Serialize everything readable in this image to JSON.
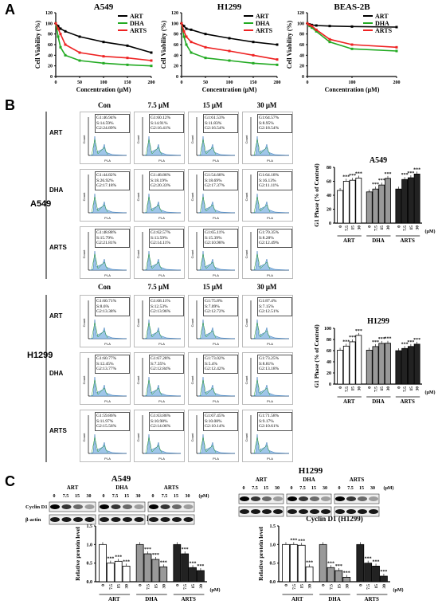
{
  "panels": {
    "a": "A",
    "b": "B",
    "c": "C"
  },
  "panelA": {
    "charts": [
      {
        "title": "A549",
        "ylabel": "Cell Viability (%)",
        "xlabel": "Concentration (μM)",
        "yticks": [
          "0",
          "20",
          "40",
          "60",
          "80",
          "100",
          "120"
        ],
        "xticks": [
          "0",
          "50",
          "100",
          "150",
          "200"
        ],
        "legend": [
          "ART",
          "DHA",
          "ARTS"
        ]
      },
      {
        "title": "H1299",
        "ylabel": "Cell Viability (%)",
        "xlabel": "Concentration (μM)",
        "yticks": [
          "0",
          "20",
          "40",
          "60",
          "80",
          "100",
          "120"
        ],
        "xticks": [
          "0",
          "50",
          "100",
          "150",
          "200"
        ],
        "legend": [
          "ART",
          "DHA",
          "ARTS"
        ]
      },
      {
        "title": "BEAS-2B",
        "ylabel": "Cell Viability (%)",
        "xlabel": "Concentration (μM)",
        "yticks": [
          "0",
          "20",
          "40",
          "60",
          "80",
          "100",
          "120"
        ],
        "xticks": [
          "0",
          "100",
          "200"
        ],
        "legend": [
          "ART",
          "DHA",
          "ARTS"
        ]
      }
    ]
  },
  "panelB": {
    "conditions": [
      "Con",
      "7.5 μM",
      "15 μM",
      "30 μM"
    ],
    "a549": {
      "cell": "A549",
      "rows": [
        {
          "drug": "ART",
          "stats": [
            [
              "G1:46.94%",
              "S:14.59%",
              "G2:24.89%"
            ],
            [
              "G1:60.12%",
              "S:14.91%",
              "G2:16.41%"
            ],
            [
              "G1:61.53%",
              "S:11.83%",
              "G2:16.54%"
            ],
            [
              "G1:64.57%",
              "S:8.95%",
              "G2:18.54%"
            ]
          ]
        },
        {
          "drug": "DHA",
          "stats": [
            [
              "G1:44.82%",
              "S:26.92%",
              "G2:17.18%"
            ],
            [
              "G1:48.86%",
              "S:18.19%",
              "G2:20.33%"
            ],
            [
              "G1:54.68%",
              "S:18.69%",
              "G2:17.37%"
            ],
            [
              "G1:64.18%",
              "S:16.13%",
              "G2:11.11%"
            ]
          ]
        },
        {
          "drug": "ARTS",
          "stats": [
            [
              "G1:48.88%",
              "S:15.79%",
              "G2:21.81%"
            ],
            [
              "G1:62.57%",
              "S:13.59%",
              "G2:14.11%"
            ],
            [
              "G1:65.11%",
              "S:15.39%",
              "G2:10.98%"
            ],
            [
              "G1:70.35%",
              "S:8.28%",
              "G2:12.49%"
            ]
          ]
        }
      ]
    },
    "h1299": {
      "cell": "H1299",
      "rows": [
        {
          "drug": "ART",
          "stats": [
            [
              "G1:60.71%",
              "S:8.6%",
              "G2:13.38%"
            ],
            [
              "G1:68.11%",
              "S:12.53%",
              "G2:13.96%"
            ],
            [
              "G1:75.8%",
              "S:7.09%",
              "G2:12.72%"
            ],
            [
              "G1:87.4%",
              "S:7.15%",
              "G2:12.51%"
            ]
          ]
        },
        {
          "drug": "DHA",
          "stats": [
            [
              "G1:60.77%",
              "S:12.45%",
              "G2:13.77%"
            ],
            [
              "G1:67.28%",
              "S:7.35%",
              "G2:12.84%"
            ],
            [
              "G1:73.02%",
              "S:5.4%",
              "G2:12.42%"
            ],
            [
              "G1:73.25%",
              "S:8.81%",
              "G2:13.18%"
            ]
          ]
        },
        {
          "drug": "ARTS",
          "stats": [
            [
              "G1:59.86%",
              "S:11.97%",
              "G2:15.56%"
            ],
            [
              "G1:63.86%",
              "S:10.98%",
              "G2:14.06%"
            ],
            [
              "G1:67.45%",
              "S:10.08%",
              "G2:10.14%"
            ],
            [
              "G1:71.58%",
              "S:9.17%",
              "G2:10.61%"
            ]
          ]
        }
      ]
    },
    "flow_axis": {
      "ylabel": "Count",
      "xlabel": "PI-A"
    },
    "bar_charts": [
      {
        "title": "A549",
        "ylabel": "G1 Phase (% of Control)",
        "yticks": [
          "0",
          "20",
          "40",
          "60",
          "80"
        ],
        "groups": [
          "ART",
          "DHA",
          "ARTS"
        ],
        "xticks": [
          "0",
          "7.5",
          "15",
          "30"
        ],
        "unit": "(μM)",
        "sig": "***"
      },
      {
        "title": "H1299",
        "ylabel": "G1 Phase (% of Control)",
        "yticks": [
          "0",
          "20",
          "40",
          "60",
          "80",
          "100"
        ],
        "groups": [
          "ART",
          "DHA",
          "ARTS"
        ],
        "xticks": [
          "0",
          "7.5",
          "15",
          "30"
        ],
        "unit": "(μM)",
        "sig": "***"
      }
    ]
  },
  "panelC": {
    "blots": [
      {
        "cell": "A549",
        "groups": [
          "ART",
          "DHA",
          "ARTS"
        ],
        "conc": [
          "0",
          "7.5",
          "15",
          "30"
        ],
        "unit": "(μM)",
        "proteins": [
          "Cyclin D1",
          "β-actin"
        ]
      },
      {
        "cell": "H1299",
        "groups": [
          "ART",
          "DHA",
          "ARTS"
        ],
        "conc": [
          "0",
          "7.5",
          "15",
          "30"
        ],
        "unit": "(μM)",
        "proteins": [
          "Cyclin D1",
          "β-actin"
        ]
      }
    ],
    "bar_charts": [
      {
        "title": "Cyclin D1 (A549)",
        "ylabel": "Relative protein level",
        "yticks": [
          "0.0",
          "0.5",
          "1.0",
          "1.5"
        ],
        "groups": [
          "ART",
          "DHA",
          "ARTS"
        ],
        "xticks": [
          "0",
          "7.5",
          "15",
          "30"
        ],
        "unit": "(μM)",
        "sig": "***"
      },
      {
        "title": "Cyclin D1 (H1299)",
        "ylabel": "Relative protein level",
        "yticks": [
          "0.0",
          "0.5",
          "1.0",
          "1.5"
        ],
        "groups": [
          "ART",
          "DHA",
          "ARTS"
        ],
        "xticks": [
          "0",
          "7.5",
          "15",
          "30"
        ],
        "unit": "(μM)",
        "sig": "***"
      }
    ]
  },
  "chart_data": [
    {
      "type": "line",
      "title": "A549",
      "xlabel": "Concentration (μM)",
      "ylabel": "Cell Viability (%)",
      "xlim": [
        0,
        200
      ],
      "ylim": [
        0,
        120
      ],
      "series": [
        {
          "name": "ART",
          "color": "#000000",
          "x": [
            0,
            5,
            10,
            20,
            50,
            100,
            150,
            200
          ],
          "y": [
            100,
            95,
            90,
            85,
            75,
            65,
            58,
            45
          ]
        },
        {
          "name": "DHA",
          "color": "#22aa22",
          "x": [
            0,
            5,
            10,
            20,
            50,
            100,
            150,
            200
          ],
          "y": [
            100,
            75,
            55,
            40,
            30,
            25,
            22,
            20
          ]
        },
        {
          "name": "ARTS",
          "color": "#ee2222",
          "x": [
            0,
            5,
            10,
            20,
            50,
            100,
            150,
            200
          ],
          "y": [
            100,
            90,
            80,
            60,
            45,
            38,
            35,
            30
          ]
        }
      ]
    },
    {
      "type": "line",
      "title": "H1299",
      "xlabel": "Concentration (μM)",
      "ylabel": "Cell Viability (%)",
      "xlim": [
        0,
        200
      ],
      "ylim": [
        0,
        120
      ],
      "series": [
        {
          "name": "ART",
          "color": "#000000",
          "x": [
            0,
            5,
            10,
            20,
            50,
            100,
            150,
            200
          ],
          "y": [
            100,
            95,
            90,
            88,
            80,
            72,
            65,
            60
          ]
        },
        {
          "name": "DHA",
          "color": "#22aa22",
          "x": [
            0,
            5,
            10,
            20,
            50,
            100,
            150,
            200
          ],
          "y": [
            100,
            75,
            60,
            45,
            35,
            30,
            25,
            22
          ]
        },
        {
          "name": "ARTS",
          "color": "#ee2222",
          "x": [
            0,
            5,
            10,
            20,
            50,
            100,
            150,
            200
          ],
          "y": [
            100,
            85,
            75,
            65,
            55,
            48,
            40,
            32
          ]
        }
      ]
    },
    {
      "type": "line",
      "title": "BEAS-2B",
      "xlabel": "Concentration (μM)",
      "ylabel": "Cell Viability (%)",
      "xlim": [
        0,
        200
      ],
      "ylim": [
        0,
        120
      ],
      "series": [
        {
          "name": "ART",
          "color": "#000000",
          "x": [
            0,
            5,
            10,
            20,
            50,
            100,
            200
          ],
          "y": [
            100,
            98,
            97,
            96,
            95,
            94,
            93
          ]
        },
        {
          "name": "DHA",
          "color": "#22aa22",
          "x": [
            0,
            5,
            10,
            20,
            50,
            100,
            200
          ],
          "y": [
            100,
            95,
            92,
            85,
            65,
            52,
            48
          ]
        },
        {
          "name": "ARTS",
          "color": "#ee2222",
          "x": [
            0,
            5,
            10,
            20,
            50,
            100,
            200
          ],
          "y": [
            100,
            97,
            95,
            88,
            70,
            60,
            55
          ]
        }
      ]
    },
    {
      "type": "bar",
      "title": "A549",
      "ylabel": "G1 Phase (% of Control)",
      "ylim": [
        0,
        80
      ],
      "groups": [
        "ART",
        "DHA",
        "ARTS"
      ],
      "categories": [
        "0",
        "7.5",
        "15",
        "30"
      ],
      "values": [
        [
          46.9,
          60.1,
          61.5,
          64.6
        ],
        [
          44.8,
          48.9,
          54.7,
          64.2
        ],
        [
          48.9,
          62.6,
          65.1,
          70.4
        ]
      ],
      "fills": [
        "#ffffff",
        "#999999",
        "#222222"
      ]
    },
    {
      "type": "bar",
      "title": "H1299",
      "ylabel": "G1 Phase (% of Control)",
      "ylim": [
        0,
        100
      ],
      "groups": [
        "ART",
        "DHA",
        "ARTS"
      ],
      "categories": [
        "0",
        "7.5",
        "15",
        "30"
      ],
      "values": [
        [
          60.7,
          68.1,
          75.8,
          87.4
        ],
        [
          60.8,
          67.3,
          73.0,
          73.3
        ],
        [
          59.9,
          63.9,
          67.5,
          71.6
        ]
      ],
      "fills": [
        "#ffffff",
        "#999999",
        "#222222"
      ]
    },
    {
      "type": "bar",
      "title": "Cyclin D1 (A549)",
      "ylabel": "Relative protein level",
      "ylim": [
        0,
        1.5
      ],
      "groups": [
        "ART",
        "DHA",
        "ARTS"
      ],
      "categories": [
        "0",
        "7.5",
        "15",
        "30"
      ],
      "values": [
        [
          1.0,
          0.5,
          0.55,
          0.42
        ],
        [
          1.0,
          0.75,
          0.6,
          0.4
        ],
        [
          1.0,
          0.75,
          0.38,
          0.3
        ]
      ],
      "fills": [
        "#ffffff",
        "#999999",
        "#222222"
      ]
    },
    {
      "type": "bar",
      "title": "Cyclin D1 (H1299)",
      "ylabel": "Relative protein level",
      "ylim": [
        0,
        1.5
      ],
      "groups": [
        "ART",
        "DHA",
        "ARTS"
      ],
      "categories": [
        "0",
        "7.5",
        "15",
        "30"
      ],
      "values": [
        [
          1.0,
          1.0,
          0.98,
          0.4
        ],
        [
          1.0,
          0.38,
          0.3,
          0.12
        ],
        [
          1.0,
          0.5,
          0.42,
          0.15
        ]
      ],
      "fills": [
        "#ffffff",
        "#999999",
        "#222222"
      ]
    }
  ]
}
